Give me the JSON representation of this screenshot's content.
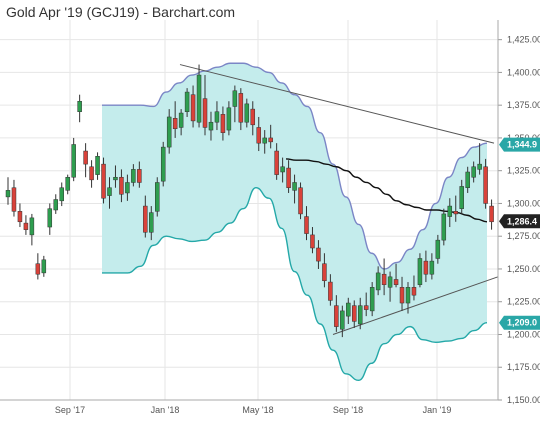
{
  "chart_data": {
    "type": "candlestick",
    "title": "Gold Apr '19 (GCJ19) - Barchart.com",
    "x_ticks": [
      "Sep '17",
      "Jan '18",
      "May '18",
      "Sep '18",
      "Jan '19"
    ],
    "y_ticks": [
      1150,
      1175,
      1200,
      1225,
      1250,
      1275,
      1300,
      1325,
      1350,
      1375,
      1400,
      1425
    ],
    "ylim": [
      1150,
      1440
    ],
    "grid": true,
    "colors": {
      "up": "#2e9e4f",
      "down": "#d9423a",
      "band_fill": "#c4ecec",
      "upper_band": "#7b86c6",
      "lower_band": "#24a8a8",
      "moving_average": "#111111",
      "trendline": "#555555",
      "price_badge": "#222222",
      "band_badge": "#2aa7a7"
    },
    "candles": [
      {
        "o": 1305,
        "h": 1320,
        "l": 1299,
        "c": 1310
      },
      {
        "o": 1312,
        "h": 1318,
        "l": 1290,
        "c": 1294
      },
      {
        "o": 1294,
        "h": 1300,
        "l": 1282,
        "c": 1286
      },
      {
        "o": 1285,
        "h": 1291,
        "l": 1276,
        "c": 1280
      },
      {
        "o": 1276,
        "h": 1292,
        "l": 1268,
        "c": 1289
      },
      {
        "o": 1254,
        "h": 1262,
        "l": 1242,
        "c": 1246
      },
      {
        "o": 1247,
        "h": 1260,
        "l": 1244,
        "c": 1257
      },
      {
        "o": 1282,
        "h": 1300,
        "l": 1276,
        "c": 1296
      },
      {
        "o": 1295,
        "h": 1307,
        "l": 1292,
        "c": 1303
      },
      {
        "o": 1302,
        "h": 1316,
        "l": 1298,
        "c": 1312
      },
      {
        "o": 1310,
        "h": 1322,
        "l": 1307,
        "c": 1320
      },
      {
        "o": 1320,
        "h": 1350,
        "l": 1317,
        "c": 1345
      },
      {
        "o": 1370,
        "h": 1383,
        "l": 1362,
        "c": 1378
      },
      {
        "o": 1340,
        "h": 1346,
        "l": 1320,
        "c": 1330
      },
      {
        "o": 1328,
        "h": 1333,
        "l": 1312,
        "c": 1318
      },
      {
        "o": 1322,
        "h": 1339,
        "l": 1318,
        "c": 1336
      },
      {
        "o": 1330,
        "h": 1335,
        "l": 1300,
        "c": 1304
      },
      {
        "o": 1306,
        "h": 1320,
        "l": 1296,
        "c": 1312
      },
      {
        "o": 1318,
        "h": 1329,
        "l": 1312,
        "c": 1320
      },
      {
        "o": 1320,
        "h": 1326,
        "l": 1301,
        "c": 1307
      },
      {
        "o": 1308,
        "h": 1322,
        "l": 1302,
        "c": 1316
      },
      {
        "o": 1316,
        "h": 1330,
        "l": 1313,
        "c": 1326
      },
      {
        "o": 1326,
        "h": 1332,
        "l": 1312,
        "c": 1316
      },
      {
        "o": 1298,
        "h": 1306,
        "l": 1274,
        "c": 1278
      },
      {
        "o": 1278,
        "h": 1298,
        "l": 1272,
        "c": 1293
      },
      {
        "o": 1294,
        "h": 1320,
        "l": 1290,
        "c": 1316
      },
      {
        "o": 1317,
        "h": 1347,
        "l": 1313,
        "c": 1343
      },
      {
        "o": 1343,
        "h": 1372,
        "l": 1338,
        "c": 1366
      },
      {
        "o": 1365,
        "h": 1378,
        "l": 1350,
        "c": 1357
      },
      {
        "o": 1358,
        "h": 1372,
        "l": 1352,
        "c": 1369
      },
      {
        "o": 1370,
        "h": 1388,
        "l": 1366,
        "c": 1385
      },
      {
        "o": 1383,
        "h": 1390,
        "l": 1358,
        "c": 1363
      },
      {
        "o": 1362,
        "h": 1406,
        "l": 1358,
        "c": 1398
      },
      {
        "o": 1380,
        "h": 1398,
        "l": 1352,
        "c": 1358
      },
      {
        "o": 1356,
        "h": 1370,
        "l": 1348,
        "c": 1362
      },
      {
        "o": 1362,
        "h": 1378,
        "l": 1356,
        "c": 1370
      },
      {
        "o": 1368,
        "h": 1374,
        "l": 1348,
        "c": 1354
      },
      {
        "o": 1356,
        "h": 1378,
        "l": 1352,
        "c": 1373
      },
      {
        "o": 1374,
        "h": 1390,
        "l": 1362,
        "c": 1386
      },
      {
        "o": 1384,
        "h": 1388,
        "l": 1356,
        "c": 1362
      },
      {
        "o": 1362,
        "h": 1380,
        "l": 1358,
        "c": 1376
      },
      {
        "o": 1372,
        "h": 1378,
        "l": 1352,
        "c": 1360
      },
      {
        "o": 1358,
        "h": 1366,
        "l": 1340,
        "c": 1346
      },
      {
        "o": 1346,
        "h": 1356,
        "l": 1338,
        "c": 1350
      },
      {
        "o": 1350,
        "h": 1360,
        "l": 1342,
        "c": 1347
      },
      {
        "o": 1340,
        "h": 1346,
        "l": 1318,
        "c": 1322
      },
      {
        "o": 1324,
        "h": 1335,
        "l": 1316,
        "c": 1328
      },
      {
        "o": 1327,
        "h": 1333,
        "l": 1308,
        "c": 1312
      },
      {
        "o": 1310,
        "h": 1322,
        "l": 1300,
        "c": 1316
      },
      {
        "o": 1312,
        "h": 1316,
        "l": 1288,
        "c": 1292
      },
      {
        "o": 1290,
        "h": 1298,
        "l": 1272,
        "c": 1277
      },
      {
        "o": 1276,
        "h": 1282,
        "l": 1262,
        "c": 1266
      },
      {
        "o": 1266,
        "h": 1272,
        "l": 1250,
        "c": 1256
      },
      {
        "o": 1254,
        "h": 1262,
        "l": 1236,
        "c": 1241
      },
      {
        "o": 1240,
        "h": 1246,
        "l": 1222,
        "c": 1226
      },
      {
        "o": 1222,
        "h": 1230,
        "l": 1202,
        "c": 1206
      },
      {
        "o": 1204,
        "h": 1222,
        "l": 1198,
        "c": 1218
      },
      {
        "o": 1214,
        "h": 1228,
        "l": 1208,
        "c": 1224
      },
      {
        "o": 1222,
        "h": 1226,
        "l": 1205,
        "c": 1210
      },
      {
        "o": 1208,
        "h": 1228,
        "l": 1204,
        "c": 1222
      },
      {
        "o": 1222,
        "h": 1232,
        "l": 1214,
        "c": 1219
      },
      {
        "o": 1218,
        "h": 1240,
        "l": 1214,
        "c": 1236
      },
      {
        "o": 1234,
        "h": 1252,
        "l": 1230,
        "c": 1247
      },
      {
        "o": 1246,
        "h": 1258,
        "l": 1230,
        "c": 1238
      },
      {
        "o": 1236,
        "h": 1248,
        "l": 1225,
        "c": 1244
      },
      {
        "o": 1242,
        "h": 1254,
        "l": 1236,
        "c": 1238
      },
      {
        "o": 1236,
        "h": 1244,
        "l": 1218,
        "c": 1224
      },
      {
        "o": 1224,
        "h": 1240,
        "l": 1216,
        "c": 1236
      },
      {
        "o": 1236,
        "h": 1245,
        "l": 1226,
        "c": 1230
      },
      {
        "o": 1238,
        "h": 1262,
        "l": 1236,
        "c": 1258
      },
      {
        "o": 1256,
        "h": 1264,
        "l": 1240,
        "c": 1246
      },
      {
        "o": 1246,
        "h": 1262,
        "l": 1242,
        "c": 1256
      },
      {
        "o": 1258,
        "h": 1276,
        "l": 1254,
        "c": 1272
      },
      {
        "o": 1272,
        "h": 1296,
        "l": 1268,
        "c": 1292
      },
      {
        "o": 1290,
        "h": 1304,
        "l": 1282,
        "c": 1298
      },
      {
        "o": 1294,
        "h": 1306,
        "l": 1286,
        "c": 1292
      },
      {
        "o": 1296,
        "h": 1318,
        "l": 1292,
        "c": 1313
      },
      {
        "o": 1312,
        "h": 1328,
        "l": 1308,
        "c": 1324
      },
      {
        "o": 1320,
        "h": 1332,
        "l": 1316,
        "c": 1328
      },
      {
        "o": 1326,
        "h": 1346,
        "l": 1322,
        "c": 1330
      },
      {
        "o": 1328,
        "h": 1334,
        "l": 1296,
        "c": 1300
      },
      {
        "o": 1298,
        "h": 1303,
        "l": 1280,
        "c": 1286
      }
    ],
    "upper_band": [
      1375,
      1375,
      1375,
      1375,
      1374,
      1385,
      1392,
      1398,
      1401,
      1404,
      1407,
      1407,
      1404,
      1400,
      1392,
      1383,
      1374,
      1354,
      1330,
      1305,
      1284,
      1262,
      1250,
      1255,
      1265,
      1280,
      1300,
      1320,
      1335,
      1343,
      1346
    ],
    "lower_band": [
      1247,
      1247,
      1247,
      1252,
      1268,
      1275,
      1273,
      1271,
      1272,
      1278,
      1285,
      1296,
      1312,
      1304,
      1281,
      1248,
      1230,
      1208,
      1188,
      1170,
      1165,
      1178,
      1193,
      1200,
      1206,
      1196,
      1194,
      1195,
      1197,
      1203,
      1209
    ],
    "moving_average": [
      1334,
      1333,
      1333,
      1332,
      1330,
      1328,
      1325,
      1320,
      1316,
      1312,
      1307,
      1302,
      1299,
      1297,
      1295,
      1295,
      1294,
      1293,
      1291,
      1288,
      1286
    ],
    "trendlines": [
      {
        "from": [
          1406,
          1406
        ],
        "to": [
          1346,
          1346
        ]
      },
      {
        "from": [
          1200,
          1200
        ],
        "to": [
          1244,
          1244
        ]
      }
    ],
    "badges": [
      {
        "value": "1,344.9",
        "price": 1344.9,
        "style": "band"
      },
      {
        "value": "1,286.4",
        "price": 1286.4,
        "style": "price"
      },
      {
        "value": "1,209.0",
        "price": 1209.0,
        "style": "band"
      }
    ]
  }
}
